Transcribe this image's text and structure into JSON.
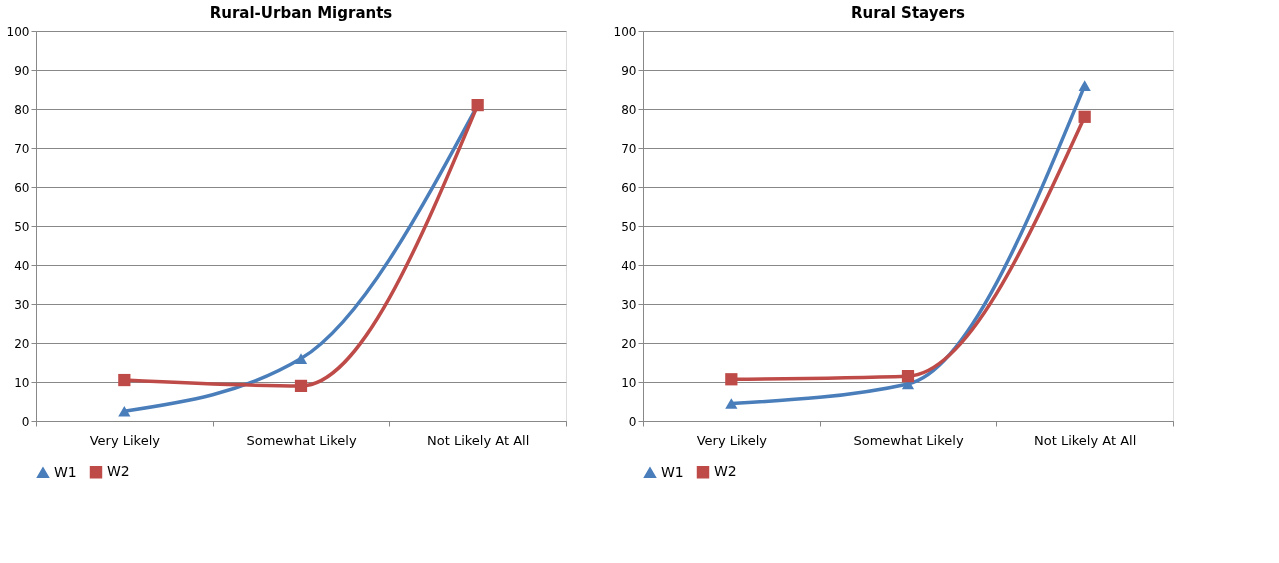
{
  "chart_data": [
    {
      "type": "line",
      "title": "Rural-Urban Migrants",
      "categories": [
        "Very Likely",
        "Somewhat Likely",
        "Not Likely At All"
      ],
      "ylim": [
        0,
        100
      ],
      "yticks": [
        0,
        10,
        20,
        30,
        40,
        50,
        60,
        70,
        80,
        90,
        100
      ],
      "grid": "y",
      "legend": "bottom",
      "line_style": "solid",
      "series": [
        {
          "name": "W1",
          "color": "#4a7ebb",
          "marker": "triangle",
          "values": [
            2.5,
            16,
            81
          ]
        },
        {
          "name": "W2",
          "color": "#be4b48",
          "marker": "square",
          "values": [
            10.5,
            9,
            81
          ]
        }
      ]
    },
    {
      "type": "line",
      "title": "Rural Stayers",
      "categories": [
        "Very Likely",
        "Somewhat Likely",
        "Not Likely At All"
      ],
      "ylim": [
        0,
        100
      ],
      "yticks": [
        0,
        10,
        20,
        30,
        40,
        50,
        60,
        70,
        80,
        90,
        100
      ],
      "grid": "y",
      "legend": "bottom",
      "line_style": "solid",
      "series": [
        {
          "name": "W1",
          "color": "#4a7ebb",
          "marker": "triangle",
          "values": [
            4.5,
            9.5,
            86
          ]
        },
        {
          "name": "W2",
          "color": "#be4b48",
          "marker": "square",
          "values": [
            10.7,
            11.5,
            78
          ]
        }
      ]
    }
  ]
}
